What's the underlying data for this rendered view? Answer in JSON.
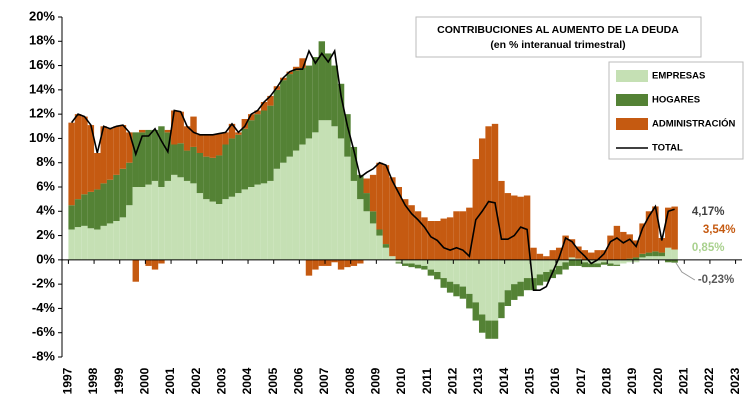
{
  "chart_data": {
    "type": "stacked_bar_line",
    "title": "CONTRIBUCIONES AL AUMENTO DE LA DEUDA",
    "subtitle": "(en % interanual trimestral)",
    "x": [
      1997,
      1997.25,
      1997.5,
      1997.75,
      1998,
      1998.25,
      1998.5,
      1998.75,
      1999,
      1999.25,
      1999.5,
      1999.75,
      2000,
      2000.25,
      2000.5,
      2000.75,
      2001,
      2001.25,
      2001.5,
      2001.75,
      2002,
      2002.25,
      2002.5,
      2002.75,
      2003,
      2003.25,
      2003.5,
      2003.75,
      2004,
      2004.25,
      2004.5,
      2004.75,
      2005,
      2005.25,
      2005.5,
      2005.75,
      2006,
      2006.25,
      2006.5,
      2006.75,
      2007,
      2007.25,
      2007.5,
      2007.75,
      2008,
      2008.25,
      2008.5,
      2008.75,
      2009,
      2009.25,
      2009.5,
      2009.75,
      2010,
      2010.25,
      2010.5,
      2010.75,
      2011,
      2011.25,
      2011.5,
      2011.75,
      2012,
      2012.25,
      2012.5,
      2012.75,
      2013,
      2013.25,
      2013.5,
      2013.75,
      2014,
      2014.25,
      2014.5,
      2014.75,
      2015,
      2015.25,
      2015.5,
      2015.75,
      2016,
      2016.25,
      2016.5,
      2016.75,
      2017,
      2017.25,
      2017.5,
      2017.75,
      2018,
      2018.25,
      2018.5,
      2018.75,
      2019,
      2019.25,
      2019.5,
      2019.75,
      2020,
      2020.25,
      2020.5
    ],
    "series": [
      {
        "name": "EMPRESAS",
        "color": "#c5e0b4",
        "kind": "bar",
        "end_label": "0,85%",
        "values": [
          2.5,
          2.7,
          2.8,
          2.6,
          2.5,
          2.8,
          3.0,
          3.2,
          3.5,
          4.5,
          6.0,
          6.0,
          6.2,
          6.5,
          6.0,
          6.5,
          7.0,
          6.8,
          6.5,
          6.3,
          5.5,
          5.0,
          4.8,
          4.6,
          5.0,
          5.2,
          5.5,
          5.8,
          6.0,
          6.2,
          6.3,
          6.5,
          7.5,
          8.0,
          8.5,
          9.0,
          9.5,
          10.0,
          10.5,
          11.5,
          11.5,
          11.0,
          10.0,
          8.5,
          6.5,
          5.0,
          4.0,
          3.0,
          2.0,
          1.0,
          0.3,
          -0.2,
          -0.3,
          -0.3,
          -0.4,
          -0.5,
          -0.8,
          -1.0,
          -1.5,
          -1.8,
          -2.0,
          -2.2,
          -2.8,
          -3.5,
          -4.5,
          -5.0,
          -5.0,
          -3.5,
          -2.5,
          -2.0,
          -1.8,
          -1.5,
          -1.5,
          -1.2,
          -1.0,
          -0.8,
          -0.5,
          -0.2,
          0.2,
          0.1,
          -0.2,
          -0.3,
          -0.3,
          -0.2,
          -0.3,
          -0.4,
          -0.3,
          -0.2,
          -0.2,
          0.2,
          0.3,
          0.3,
          0.3,
          1.0,
          0.85
        ]
      },
      {
        "name": "HOGARES",
        "color": "#548235",
        "kind": "bar",
        "end_label": "-0,23%",
        "values": [
          2.0,
          2.3,
          2.6,
          3.0,
          3.3,
          3.5,
          3.6,
          3.8,
          4.0,
          3.5,
          4.5,
          4.5,
          4.5,
          4.2,
          5.0,
          4.0,
          2.5,
          2.8,
          2.5,
          3.0,
          3.3,
          3.5,
          3.6,
          4.0,
          4.5,
          4.8,
          4.8,
          5.0,
          5.5,
          5.8,
          6.0,
          6.2,
          6.5,
          6.8,
          6.8,
          6.6,
          6.3,
          6.0,
          6.2,
          6.5,
          5.5,
          5.0,
          4.5,
          3.5,
          2.8,
          2.0,
          1.5,
          1.0,
          0.5,
          0.3,
          0.0,
          -0.1,
          -0.2,
          -0.3,
          -0.3,
          -0.3,
          -0.5,
          -0.6,
          -0.8,
          -0.9,
          -1.0,
          -1.0,
          -1.2,
          -1.5,
          -1.5,
          -1.5,
          -1.5,
          -1.3,
          -1.3,
          -1.3,
          -1.2,
          -1.0,
          -1.0,
          -0.9,
          -0.8,
          -0.7,
          -0.7,
          -0.6,
          -0.5,
          -0.5,
          -0.4,
          -0.3,
          -0.3,
          -0.2,
          -0.2,
          -0.1,
          0.0,
          0.1,
          0.2,
          0.3,
          0.3,
          0.4,
          0.3,
          -0.2,
          -0.23
        ]
      },
      {
        "name": "ADMINISTRACIÓN",
        "color": "#c55a11",
        "kind": "bar",
        "end_label": "3,54%",
        "values": [
          6.8,
          7.0,
          6.4,
          5.5,
          3.0,
          4.7,
          4.2,
          4.0,
          3.6,
          2.5,
          -1.8,
          0.2,
          -0.5,
          -0.8,
          -0.3,
          0.2,
          2.8,
          2.6,
          2.0,
          2.5,
          1.5,
          1.8,
          1.9,
          1.8,
          1.0,
          1.2,
          0.2,
          0.8,
          0.5,
          0.3,
          0.7,
          0.8,
          0.3,
          0.2,
          0.2,
          0.3,
          0.8,
          -1.3,
          -0.8,
          -0.5,
          -0.5,
          -0.2,
          -0.8,
          -0.6,
          -0.5,
          -0.3,
          1.2,
          3.0,
          5.5,
          6.5,
          6.5,
          6.0,
          5.0,
          4.5,
          4.0,
          3.5,
          3.2,
          3.2,
          3.4,
          3.5,
          4.0,
          4.0,
          4.3,
          8.3,
          10.0,
          11.0,
          11.2,
          6.5,
          5.5,
          5.3,
          5.2,
          5.3,
          1.0,
          0.5,
          0.3,
          0.8,
          1.0,
          2.0,
          1.5,
          1.0,
          0.8,
          0.6,
          0.8,
          0.8,
          2.0,
          2.8,
          2.3,
          2.0,
          1.4,
          2.5,
          3.4,
          3.7,
          1.2,
          3.3,
          3.54
        ]
      },
      {
        "name": "TOTAL",
        "color": "#000000",
        "kind": "line",
        "end_label": "4,17%",
        "values": [
          11.3,
          12.0,
          11.8,
          11.1,
          8.8,
          11.0,
          10.8,
          11.0,
          11.1,
          10.5,
          8.7,
          10.2,
          10.2,
          10.8,
          9.8,
          8.9,
          12.3,
          12.2,
          11.0,
          10.5,
          10.3,
          10.3,
          10.3,
          10.4,
          10.5,
          11.2,
          10.5,
          11.0,
          12.0,
          12.3,
          13.0,
          13.5,
          14.2,
          15.0,
          15.5,
          15.7,
          15.7,
          17.2,
          16.2,
          17.0,
          16.3,
          17.2,
          13.5,
          11.0,
          9.0,
          6.8,
          7.2,
          7.5,
          8.0,
          7.8,
          6.5,
          5.5,
          4.5,
          3.8,
          3.3,
          2.7,
          1.9,
          1.6,
          1.0,
          0.8,
          1.0,
          0.8,
          0.3,
          3.3,
          4.0,
          4.8,
          4.7,
          1.7,
          1.7,
          2.0,
          2.7,
          2.5,
          -2.5,
          -2.5,
          -2.2,
          -1.0,
          0.2,
          1.8,
          1.5,
          0.8,
          0.3,
          -0.3,
          0.0,
          0.5,
          1.5,
          1.8,
          1.4,
          1.7,
          1.1,
          2.6,
          3.6,
          4.4,
          1.6,
          4.0,
          4.17
        ]
      }
    ],
    "xlim": [
      1996.75,
      2023.25
    ],
    "xticks": [
      1997,
      1998,
      1999,
      2000,
      2001,
      2002,
      2003,
      2004,
      2005,
      2006,
      2007,
      2008,
      2009,
      2010,
      2011,
      2012,
      2013,
      2014,
      2015,
      2016,
      2017,
      2018,
      2019,
      2020,
      2021,
      2022,
      2023
    ],
    "ylim": [
      -8,
      20
    ],
    "yticks": [
      {
        "value": -8,
        "label": "-8%"
      },
      {
        "value": -6,
        "label": "-6%"
      },
      {
        "value": -4,
        "label": "-4%"
      },
      {
        "value": -2,
        "label": "-2%"
      },
      {
        "value": 0,
        "label": "0%"
      },
      {
        "value": 2,
        "label": "2%"
      },
      {
        "value": 4,
        "label": "4%"
      },
      {
        "value": 6,
        "label": "6%"
      },
      {
        "value": 8,
        "label": "8%"
      },
      {
        "value": 10,
        "label": "10%"
      },
      {
        "value": 12,
        "label": "12%"
      },
      {
        "value": 14,
        "label": "14%"
      },
      {
        "value": 16,
        "label": "16%"
      },
      {
        "value": 18,
        "label": "18%"
      },
      {
        "value": 20,
        "label": "20%"
      }
    ],
    "grid": false
  }
}
